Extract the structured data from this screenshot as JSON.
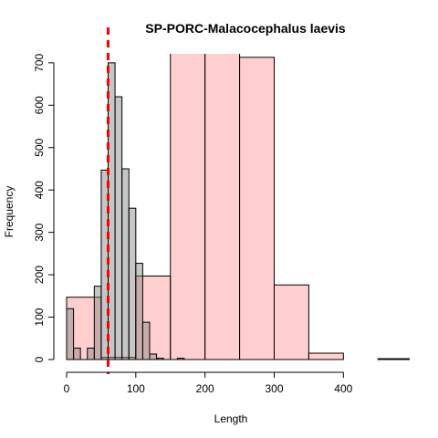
{
  "chart_data": {
    "type": "histogram",
    "title": "SP-PORC-Malacocephalus laevis",
    "xlabel": "Length",
    "ylabel": "Frequency",
    "xlim": [
      0,
      500
    ],
    "ylim": [
      0,
      720
    ],
    "x_ticks": [
      0,
      100,
      200,
      300,
      400
    ],
    "y_ticks": [
      0,
      100,
      200,
      300,
      400,
      500,
      600,
      700
    ],
    "reference_line": {
      "x": 60,
      "color": "#ff0000",
      "style": "dashed"
    },
    "series": [
      {
        "fill": "rgba(255,160,160,0.5)",
        "bins": [
          {
            "start": 0,
            "end": 50,
            "value": 147
          },
          {
            "start": 50,
            "end": 100,
            "value": 5
          },
          {
            "start": 100,
            "end": 150,
            "value": 197
          },
          {
            "start": 150,
            "end": 200,
            "value": 745
          },
          {
            "start": 200,
            "end": 250,
            "value": 745
          },
          {
            "start": 250,
            "end": 300,
            "value": 713
          },
          {
            "start": 300,
            "end": 350,
            "value": 176
          },
          {
            "start": 350,
            "end": 400,
            "value": 15
          },
          {
            "start": 400,
            "end": 450,
            "value": 0
          },
          {
            "start": 450,
            "end": 500,
            "value": 2
          }
        ]
      },
      {
        "fill": "rgba(128,128,128,0.45)",
        "bins": [
          {
            "start": 0,
            "end": 10,
            "value": 120
          },
          {
            "start": 10,
            "end": 20,
            "value": 27
          },
          {
            "start": 20,
            "end": 30,
            "value": 0
          },
          {
            "start": 30,
            "end": 40,
            "value": 27
          },
          {
            "start": 40,
            "end": 50,
            "value": 173
          },
          {
            "start": 50,
            "end": 60,
            "value": 447
          },
          {
            "start": 60,
            "end": 70,
            "value": 700
          },
          {
            "start": 70,
            "end": 80,
            "value": 620
          },
          {
            "start": 80,
            "end": 90,
            "value": 450
          },
          {
            "start": 90,
            "end": 100,
            "value": 357
          },
          {
            "start": 100,
            "end": 110,
            "value": 227
          },
          {
            "start": 110,
            "end": 120,
            "value": 88
          },
          {
            "start": 120,
            "end": 130,
            "value": 13
          },
          {
            "start": 130,
            "end": 140,
            "value": 3
          },
          {
            "start": 140,
            "end": 150,
            "value": 0
          },
          {
            "start": 150,
            "end": 160,
            "value": 0
          },
          {
            "start": 160,
            "end": 170,
            "value": 3
          }
        ]
      }
    ]
  }
}
